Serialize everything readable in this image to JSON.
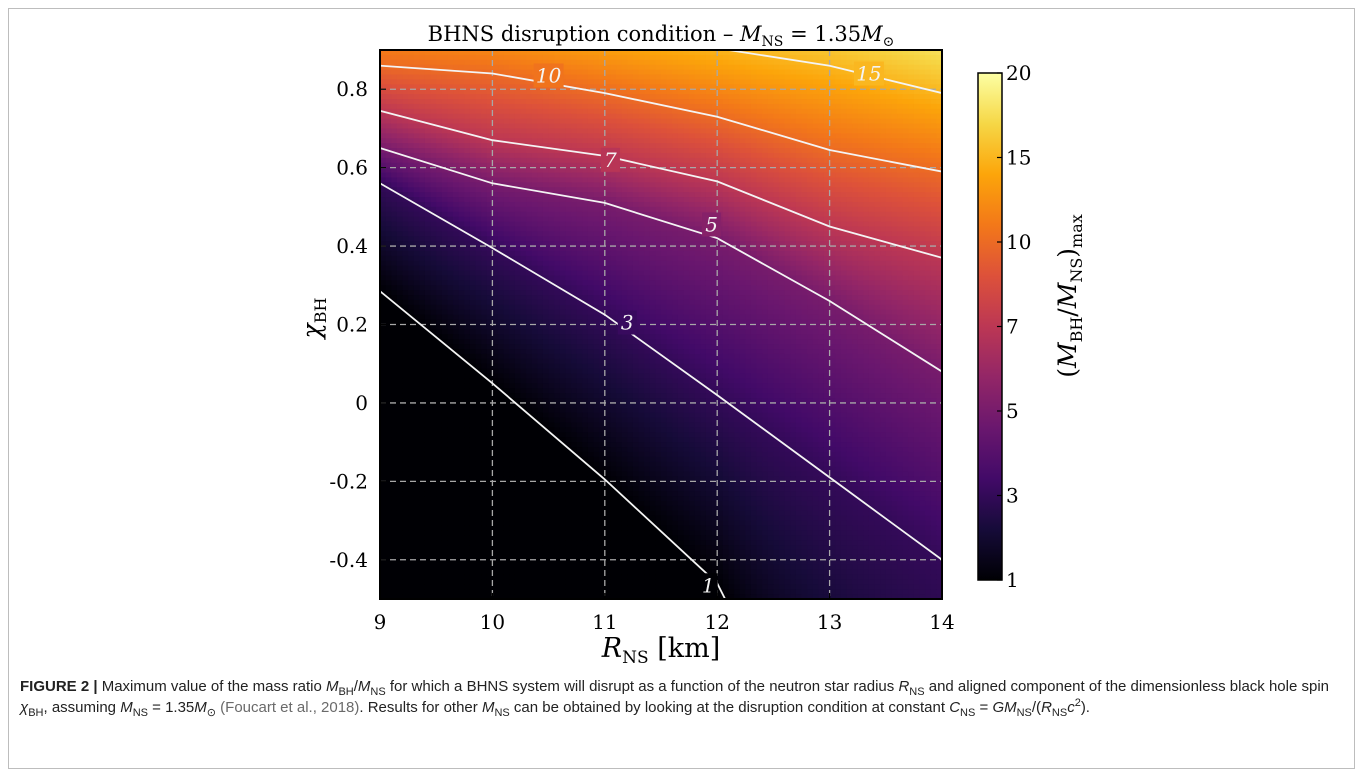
{
  "chart_data": {
    "type": "heatmap",
    "title": {
      "prefix": "BHNS disruption condition – ",
      "var": "M",
      "var_sub": "NS",
      "mid": " = 1.35",
      "const": "M",
      "const_sub": "⊙"
    },
    "xlabel": {
      "var": "R",
      "sub": "NS",
      "unit": " [km]"
    },
    "ylabel": {
      "var": "χ",
      "sub": "BH"
    },
    "xlim": [
      9,
      14
    ],
    "ylim": [
      -0.5,
      0.9
    ],
    "x_ticks": [
      9,
      10,
      11,
      12,
      13,
      14
    ],
    "x_tick_labels": [
      "9",
      "10",
      "11",
      "12",
      "13",
      "14"
    ],
    "y_ticks": [
      -0.4,
      -0.2,
      0,
      0.2,
      0.4,
      0.6,
      0.8
    ],
    "y_tick_labels": [
      "-0.4",
      "-0.2",
      "0",
      "0.2",
      "0.4",
      "0.6",
      "0.8"
    ],
    "grid": true,
    "colormap": "inferno",
    "colorbar": {
      "label": {
        "open": "(",
        "var1": "M",
        "sub1": "BH",
        "slash": "/",
        "var2": "M",
        "sub2": "NS",
        "close": ")",
        "outer_sub": "max"
      },
      "range": [
        1,
        20
      ],
      "ticks": [
        1,
        3,
        5,
        7,
        10,
        15,
        20
      ],
      "tick_labels": [
        "1",
        "3",
        "5",
        "7",
        "10",
        "15",
        "20"
      ]
    },
    "contours": [
      {
        "level": 1,
        "label": "1",
        "label_at": [
          11.92,
          -0.465
        ],
        "points": [
          [
            9,
            0.285
          ],
          [
            10,
            0.05
          ],
          [
            11,
            -0.195
          ],
          [
            12,
            -0.46
          ],
          [
            12.07,
            -0.5
          ]
        ]
      },
      {
        "level": 3,
        "label": "3",
        "label_at": [
          11.2,
          0.205
        ],
        "points": [
          [
            9,
            0.56
          ],
          [
            10,
            0.395
          ],
          [
            11,
            0.225
          ],
          [
            12,
            0.02
          ],
          [
            13,
            -0.19
          ],
          [
            14,
            -0.4
          ]
        ]
      },
      {
        "level": 5,
        "label": "5",
        "label_at": [
          11.95,
          0.455
        ],
        "points": [
          [
            9,
            0.65
          ],
          [
            10,
            0.56
          ],
          [
            11,
            0.51
          ],
          [
            12,
            0.42
          ],
          [
            13,
            0.26
          ],
          [
            14,
            0.08
          ]
        ]
      },
      {
        "level": 7,
        "label": "7",
        "label_at": [
          11.05,
          0.62
        ],
        "points": [
          [
            9,
            0.745
          ],
          [
            10,
            0.67
          ],
          [
            11,
            0.63
          ],
          [
            12,
            0.565
          ],
          [
            13,
            0.45
          ],
          [
            14,
            0.37
          ]
        ]
      },
      {
        "level": 10,
        "label": "10",
        "label_at": [
          10.5,
          0.835
        ],
        "points": [
          [
            9,
            0.86
          ],
          [
            10,
            0.84
          ],
          [
            11,
            0.79
          ],
          [
            12,
            0.73
          ],
          [
            13,
            0.645
          ],
          [
            14,
            0.59
          ]
        ]
      },
      {
        "level": 15,
        "label": "15",
        "label_at": [
          13.35,
          0.84
        ],
        "points": [
          [
            12.1,
            0.9
          ],
          [
            13,
            0.86
          ],
          [
            14,
            0.79
          ]
        ]
      }
    ]
  },
  "caption": {
    "fig_label": "FIGURE 2 |",
    "t1": " Maximum value of the mass ratio ",
    "t1_v1": "M",
    "t1_s1": "BH",
    "t1_slash": "/",
    "t1_v2": "M",
    "t1_s2": "NS",
    "t2": " for which a BHNS system will disrupt as a function of the neutron star radius ",
    "t2_v": "R",
    "t2_s": "NS",
    "t3": " and aligned component of the dimensionless black hole spin ",
    "t3_v": "χ",
    "t3_s": "BH",
    "t4": ", assuming ",
    "t4_v": "M",
    "t4_s": "NS",
    "t4_eq": " = 1.35",
    "t4_c": "M",
    "t4_cs": "⊙",
    "t4_sp": " ",
    "cite": "(Foucart et al., 2018)",
    "t5": ". Results for other ",
    "t5_v": "M",
    "t5_s": "NS",
    "t6": " can be obtained by looking at the disruption condition at constant ",
    "t6_v": "C",
    "t6_s": "NS",
    "t6_eq": " = ",
    "t6_g": "GM",
    "t6_gs": "NS",
    "t6_sl": "/(",
    "t6_r": "R",
    "t6_rs": "NS",
    "t6_c": "c",
    "t6_sup": "2",
    "t6_end": ")."
  }
}
